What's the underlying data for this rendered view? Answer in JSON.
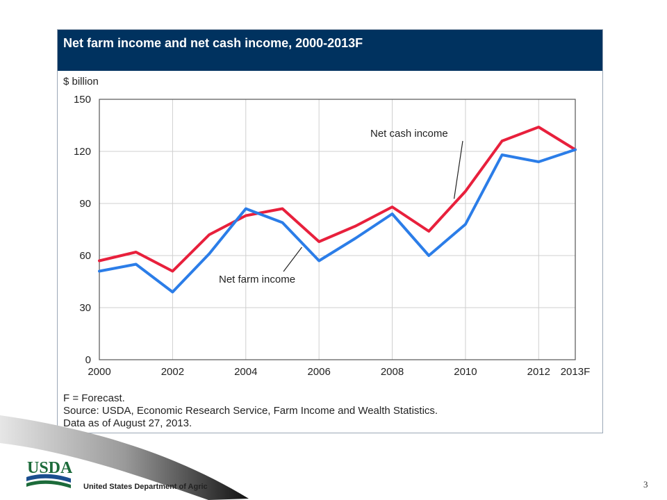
{
  "chart_data": {
    "type": "line",
    "title": "Net farm income and net cash income, 2000-2013F",
    "ylabel": "$ billion",
    "xlabel": "",
    "categories": [
      "2000",
      "2001",
      "2002",
      "2003",
      "2004",
      "2005",
      "2006",
      "2007",
      "2008",
      "2009",
      "2010",
      "2011",
      "2012",
      "2013F"
    ],
    "x_tick_labels": [
      "2000",
      "2002",
      "2004",
      "2006",
      "2008",
      "2010",
      "2012",
      "2013F"
    ],
    "y_tick_labels": [
      "0",
      "30",
      "60",
      "90",
      "120",
      "150"
    ],
    "ylim": [
      0,
      150
    ],
    "grid": true,
    "series": [
      {
        "name": "Net cash income",
        "color": "#e8203c",
        "values": [
          57,
          62,
          51,
          72,
          83,
          87,
          68,
          77,
          88,
          74,
          97,
          126,
          134,
          121
        ]
      },
      {
        "name": "Net farm income",
        "color": "#2b7de8",
        "values": [
          51,
          55,
          39,
          61,
          87,
          79,
          57,
          70,
          84,
          60,
          78,
          118,
          114,
          121
        ]
      }
    ],
    "notes": [
      "F = Forecast.",
      "Source: USDA, Economic Research Service, Farm Income and Wealth Statistics.",
      "Data as of August 27, 2013."
    ]
  },
  "footer": {
    "logo_text": "USDA",
    "department": "United States Department of Agric",
    "page_number": "3"
  },
  "colors": {
    "title_bar": "#00325f",
    "logo_green": "#1c6b3a",
    "logo_blue": "#1b4e8f"
  }
}
